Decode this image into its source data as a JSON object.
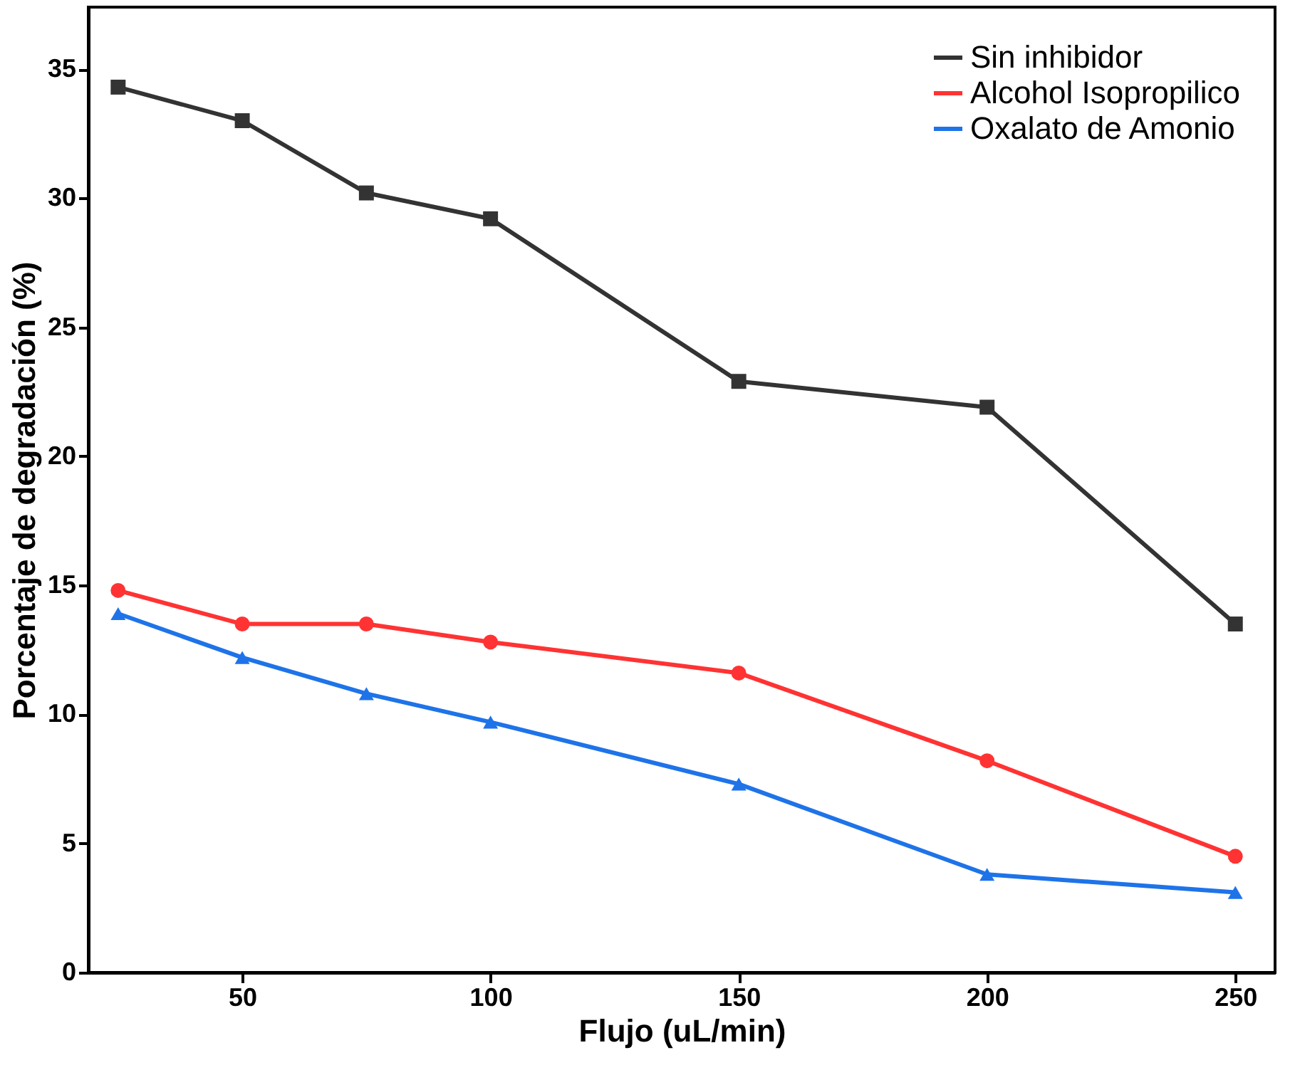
{
  "chart_data": {
    "type": "line",
    "xlabel": "Flujo (uL/min)",
    "ylabel": "Porcentaje de degradación (%)",
    "x": [
      25,
      50,
      75,
      100,
      150,
      200,
      250
    ],
    "xlim": [
      19,
      258
    ],
    "ylim": [
      0,
      37.4
    ],
    "xticks": [
      50,
      100,
      150,
      200,
      250
    ],
    "yticks": [
      0,
      5,
      10,
      15,
      20,
      25,
      30,
      35
    ],
    "grid": false,
    "legend": "top right",
    "line_style": "solid",
    "series": [
      {
        "name": "Sin inhibidor",
        "color": "#333333",
        "marker": "square",
        "values": [
          34.3,
          33.0,
          30.2,
          29.2,
          22.9,
          21.9,
          13.5
        ]
      },
      {
        "name": "Alcohol Isopropilico",
        "color": "#ff3333",
        "marker": "circle",
        "values": [
          14.8,
          13.5,
          13.5,
          12.8,
          11.6,
          8.2,
          4.5
        ]
      },
      {
        "name": "Oxalato de Amonio",
        "color": "#1e73e8",
        "marker": "triangle",
        "values": [
          13.9,
          12.2,
          10.8,
          9.7,
          7.3,
          3.8,
          3.1
        ]
      }
    ]
  }
}
